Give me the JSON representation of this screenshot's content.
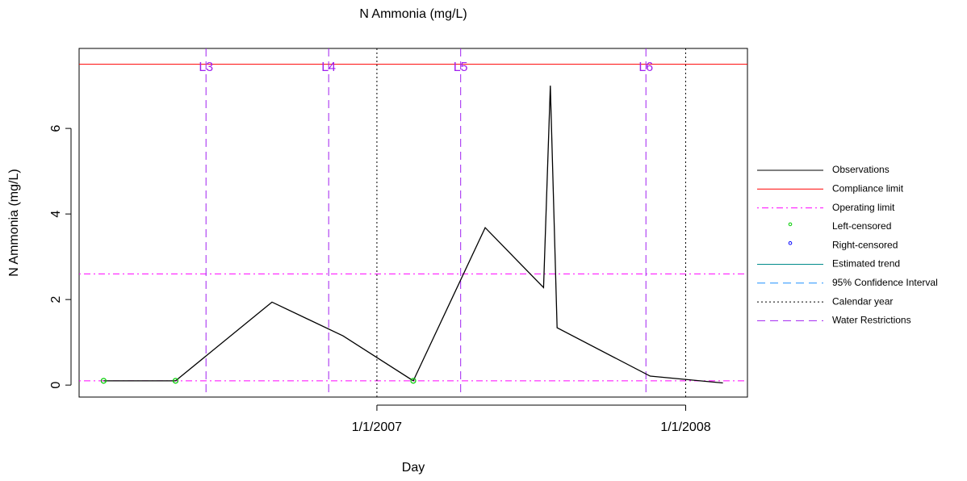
{
  "chart_data": {
    "type": "line",
    "title": "N Ammonia (mg/L)",
    "xlabel": "Day",
    "ylabel": "N Ammonia (mg/L)",
    "xlim": [
      "2006-01-14",
      "2008-03-14"
    ],
    "xticks": [
      {
        "value": "2007-01-01",
        "label": "1/1/2007"
      },
      {
        "value": "2008-01-01",
        "label": "1/1/2008"
      }
    ],
    "ylim": [
      -0.28,
      7.87
    ],
    "yticks": [
      0,
      2,
      4,
      6
    ],
    "series": [
      {
        "name": "Observations",
        "color": "#000000",
        "kind": "line",
        "x": [
          "2006-02-12",
          "2006-05-08",
          "2006-08-30",
          "2006-11-22",
          "2007-02-13",
          "2007-05-09",
          "2007-07-17",
          "2007-07-25",
          "2007-08-02",
          "2007-11-20",
          "2008-02-14"
        ],
        "values": [
          0.1,
          0.1,
          1.94,
          1.15,
          0.1,
          3.68,
          2.28,
          7.0,
          1.34,
          0.21,
          0.05
        ]
      },
      {
        "name": "Left-censored",
        "color": "#00cd00",
        "kind": "points",
        "x": [
          "2006-02-12",
          "2006-05-08",
          "2007-02-13"
        ],
        "values": [
          0.1,
          0.1,
          0.1
        ]
      }
    ],
    "hlines": [
      {
        "name": "Compliance limit",
        "color": "#ff0000",
        "style": "solid",
        "values": [
          7.5
        ]
      },
      {
        "name": "Operating limit",
        "color": "#ff00ff",
        "style": "dotdash",
        "values": [
          2.6,
          0.1
        ]
      }
    ],
    "vlines": [
      {
        "name": "Calendar year",
        "color": "#000000",
        "style": "dotted",
        "x": [
          "2007-01-01",
          "2008-01-01"
        ]
      },
      {
        "name": "Water Restrictions",
        "color": "#a020f0",
        "style": "dashed",
        "x": [
          "2006-06-13",
          "2006-11-05",
          "2007-04-10",
          "2007-11-15"
        ],
        "labels": [
          "L3",
          "L4",
          "L5",
          "L6"
        ]
      }
    ],
    "legend": [
      {
        "name": "Observations",
        "color": "#000000",
        "style": "solid"
      },
      {
        "name": "Compliance limit",
        "color": "#ff0000",
        "style": "solid"
      },
      {
        "name": "Operating limit",
        "color": "#ff00ff",
        "style": "dotdash"
      },
      {
        "name": "Left-censored",
        "color": "#00cd00",
        "style": "point"
      },
      {
        "name": "Right-censored",
        "color": "#0000ff",
        "style": "point"
      },
      {
        "name": "Estimated trend",
        "color": "#008b8b",
        "style": "solid"
      },
      {
        "name": "95% Confidence Interval",
        "color": "#1e90ff",
        "style": "dashed"
      },
      {
        "name": "Calendar year",
        "color": "#000000",
        "style": "dotted"
      },
      {
        "name": "Water Restrictions",
        "color": "#a020f0",
        "style": "dashed"
      }
    ]
  }
}
